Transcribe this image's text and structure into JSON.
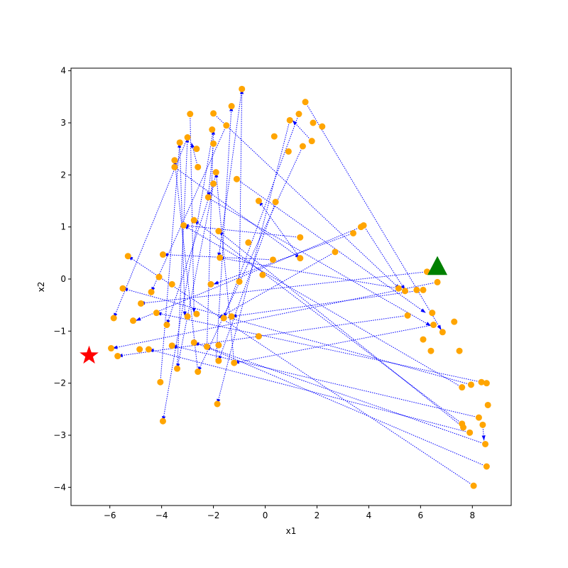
{
  "chart_data": {
    "type": "scatter",
    "title": "",
    "xlabel": "x1",
    "ylabel": "x2",
    "xlim": [
      -7.5,
      9.5
    ],
    "ylim": [
      -4.35,
      4.05
    ],
    "xticks": [
      -6,
      -4,
      -2,
      0,
      2,
      4,
      6,
      8
    ],
    "xtick_labels": [
      "−6",
      "−4",
      "−2",
      "0",
      "2",
      "4",
      "6",
      "8"
    ],
    "yticks": [
      -4,
      -3,
      -2,
      -1,
      0,
      1,
      2,
      3,
      4
    ],
    "ytick_labels": [
      "−4",
      "−3",
      "−2",
      "−1",
      "0",
      "1",
      "2",
      "3",
      "4"
    ],
    "grid": false,
    "colors": {
      "points": "#ffa500",
      "arrows": "#0000ff",
      "start_marker": "#ff0000",
      "goal_marker": "#008000"
    },
    "points": [
      [
        -0.9,
        3.65
      ],
      [
        -1.3,
        3.32
      ],
      [
        -1.5,
        2.95
      ],
      [
        -2.9,
        3.17
      ],
      [
        -2.0,
        3.18
      ],
      [
        -2.05,
        2.87
      ],
      [
        -2.0,
        2.6
      ],
      [
        -3.0,
        2.72
      ],
      [
        -3.3,
        2.62
      ],
      [
        -3.5,
        2.28
      ],
      [
        -3.5,
        2.15
      ],
      [
        -2.65,
        2.5
      ],
      [
        -2.6,
        2.15
      ],
      [
        -1.9,
        2.05
      ],
      [
        -2.0,
        1.83
      ],
      [
        -2.2,
        1.57
      ],
      [
        -3.15,
        1.03
      ],
      [
        -2.75,
        1.13
      ],
      [
        -1.8,
        0.92
      ],
      [
        -1.75,
        0.41
      ],
      [
        -1.1,
        1.92
      ],
      [
        -0.65,
        0.7
      ],
      [
        -0.25,
        1.5
      ],
      [
        0.4,
        1.48
      ],
      [
        0.35,
        2.74
      ],
      [
        0.9,
        2.45
      ],
      [
        0.95,
        3.05
      ],
      [
        1.3,
        3.17
      ],
      [
        1.55,
        3.4
      ],
      [
        1.85,
        3.0
      ],
      [
        2.2,
        2.93
      ],
      [
        1.45,
        2.55
      ],
      [
        1.8,
        2.65
      ],
      [
        1.35,
        0.8
      ],
      [
        1.35,
        0.4
      ],
      [
        2.7,
        0.52
      ],
      [
        3.4,
        0.88
      ],
      [
        3.7,
        1.0
      ],
      [
        3.8,
        1.03
      ],
      [
        0.3,
        0.37
      ],
      [
        -0.1,
        0.08
      ],
      [
        -1.0,
        -0.05
      ],
      [
        -2.1,
        -0.1
      ],
      [
        -3.95,
        0.47
      ],
      [
        -4.1,
        0.04
      ],
      [
        -3.6,
        -0.1
      ],
      [
        -4.4,
        -0.25
      ],
      [
        -5.3,
        0.44
      ],
      [
        -5.5,
        -0.18
      ],
      [
        -4.8,
        -0.47
      ],
      [
        -4.2,
        -0.65
      ],
      [
        -5.1,
        -0.8
      ],
      [
        -5.85,
        -0.75
      ],
      [
        -3.8,
        -0.88
      ],
      [
        -3.0,
        -0.72
      ],
      [
        -2.65,
        -0.67
      ],
      [
        -1.6,
        -0.75
      ],
      [
        -1.3,
        -0.72
      ],
      [
        -0.25,
        -1.1
      ],
      [
        -1.8,
        -1.27
      ],
      [
        -2.75,
        -1.22
      ],
      [
        -3.6,
        -1.28
      ],
      [
        -4.5,
        -1.35
      ],
      [
        -4.85,
        -1.35
      ],
      [
        -5.95,
        -1.33
      ],
      [
        -5.7,
        -1.48
      ],
      [
        -2.25,
        -1.3
      ],
      [
        -1.8,
        -1.57
      ],
      [
        -1.2,
        -1.61
      ],
      [
        -2.6,
        -1.78
      ],
      [
        -3.4,
        -1.72
      ],
      [
        -4.05,
        -1.98
      ],
      [
        -1.85,
        -2.4
      ],
      [
        -3.95,
        -2.73
      ],
      [
        5.15,
        -0.18
      ],
      [
        5.4,
        -0.23
      ],
      [
        5.85,
        -0.21
      ],
      [
        6.1,
        -0.21
      ],
      [
        6.25,
        0.14
      ],
      [
        6.65,
        -0.06
      ],
      [
        6.45,
        -0.65
      ],
      [
        6.5,
        -0.88
      ],
      [
        6.85,
        -1.02
      ],
      [
        6.4,
        -1.38
      ],
      [
        5.5,
        -0.7
      ],
      [
        7.3,
        -0.82
      ],
      [
        7.5,
        -1.38
      ],
      [
        6.1,
        -1.16
      ],
      [
        7.6,
        -2.08
      ],
      [
        7.95,
        -2.03
      ],
      [
        8.35,
        -1.98
      ],
      [
        8.55,
        -2.0
      ],
      [
        8.6,
        -2.42
      ],
      [
        8.25,
        -2.66
      ],
      [
        8.4,
        -2.8
      ],
      [
        8.5,
        -3.17
      ],
      [
        7.9,
        -2.95
      ],
      [
        7.6,
        -2.78
      ],
      [
        7.65,
        -2.85
      ],
      [
        8.55,
        -3.6
      ],
      [
        8.05,
        -3.97
      ]
    ],
    "arrows": [
      [
        -1.0,
        -0.05,
        -0.9,
        3.65
      ],
      [
        -1.9,
        -1.55,
        -1.3,
        3.32
      ],
      [
        -2.0,
        2.6,
        -2.2,
        1.57
      ],
      [
        -2.9,
        3.17,
        -2.75,
        -0.65
      ],
      [
        -2.0,
        3.18,
        5.2,
        -0.19
      ],
      [
        -2.0,
        2.87,
        -3.95,
        -2.73
      ],
      [
        -3.3,
        2.62,
        -3.1,
        -0.72
      ],
      [
        -3.0,
        2.72,
        -5.85,
        -0.75
      ],
      [
        -3.5,
        2.15,
        1.35,
        0.4
      ],
      [
        -2.6,
        2.15,
        -2.85,
        2.62
      ],
      [
        -1.9,
        2.05,
        -3.4,
        -1.72
      ],
      [
        -2.0,
        1.83,
        -3.8,
        -0.88
      ],
      [
        -1.5,
        2.95,
        -4.4,
        -0.25
      ],
      [
        -0.9,
        3.65,
        -1.8,
        0.41
      ],
      [
        -2.25,
        1.57,
        6.4,
        -0.9
      ],
      [
        -1.1,
        1.92,
        6.2,
        -0.65
      ],
      [
        1.35,
        0.8,
        -3.15,
        1.03
      ],
      [
        0.4,
        1.48,
        -1.8,
        -1.57
      ],
      [
        1.3,
        3.17,
        -1.6,
        -0.75
      ],
      [
        1.55,
        3.4,
        6.8,
        -0.98
      ],
      [
        1.8,
        2.65,
        1.05,
        3.05
      ],
      [
        0.95,
        3.05,
        -1.85,
        -2.4
      ],
      [
        1.45,
        2.55,
        -2.6,
        -1.78
      ],
      [
        1.35,
        0.4,
        -0.25,
        1.5
      ],
      [
        3.4,
        0.88,
        -2.0,
        -0.1
      ],
      [
        3.8,
        1.03,
        5.4,
        -0.21
      ],
      [
        3.7,
        1.0,
        -5.0,
        -0.8
      ],
      [
        2.7,
        0.52,
        -1.8,
        -0.75
      ],
      [
        0.3,
        0.37,
        -3.95,
        0.47
      ],
      [
        6.65,
        -0.06,
        -5.9,
        -1.33
      ],
      [
        6.25,
        0.14,
        -4.85,
        -0.47
      ],
      [
        5.5,
        -0.7,
        -5.7,
        -1.48
      ],
      [
        5.15,
        -0.18,
        -1.8,
        0.41
      ],
      [
        6.1,
        -0.21,
        -1.3,
        -0.72
      ],
      [
        6.5,
        -0.88,
        -1.2,
        -1.61
      ],
      [
        7.95,
        -2.03,
        -5.5,
        -0.18
      ],
      [
        8.35,
        -1.98,
        -4.2,
        -0.65
      ],
      [
        8.25,
        -2.66,
        -3.6,
        -1.28
      ],
      [
        8.5,
        -3.17,
        -2.75,
        -1.22
      ],
      [
        7.9,
        -2.95,
        -4.5,
        -1.35
      ],
      [
        8.55,
        -3.6,
        -2.3,
        -1.3
      ],
      [
        8.05,
        -3.97,
        -5.3,
        0.44
      ],
      [
        7.6,
        -2.08,
        -3.15,
        1.03
      ],
      [
        7.6,
        -2.78,
        -2.75,
        1.13
      ],
      [
        7.65,
        -2.85,
        -1.8,
        0.92
      ],
      [
        8.4,
        -2.8,
        8.45,
        -3.1
      ],
      [
        -2.6,
        -1.78,
        -3.5,
        2.28
      ],
      [
        -3.4,
        -1.72,
        -3.0,
        2.72
      ],
      [
        -4.05,
        -1.98,
        -3.3,
        2.62
      ],
      [
        -1.2,
        -1.61,
        -1.9,
        2.05
      ],
      [
        -2.25,
        -1.3,
        -2.0,
        2.87
      ]
    ],
    "markers": [
      {
        "symbol": "star",
        "x": -6.8,
        "y": -1.47
      },
      {
        "symbol": "triangle",
        "x": 6.65,
        "y": 0.25
      }
    ]
  }
}
